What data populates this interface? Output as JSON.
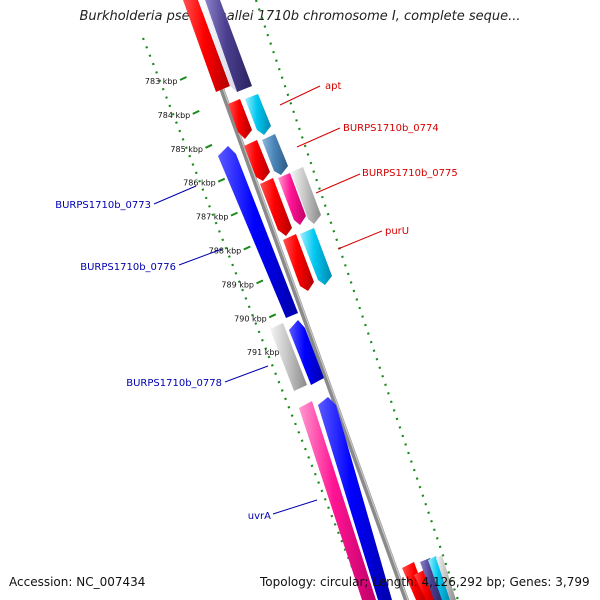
{
  "title": "Burkholderia pseudomallei 1710b chromosome I, complete seque...",
  "footer": {
    "accession": "Accession: NC_007434",
    "topology": "Topology: circular; Length: 4,126,292 bp; Genes: 3,799"
  },
  "ruler": [
    {
      "label": "783 kbp",
      "kbp": 783
    },
    {
      "label": "784 kbp",
      "kbp": 784
    },
    {
      "label": "785 kbp",
      "kbp": 785
    },
    {
      "label": "786 kbp",
      "kbp": 786
    },
    {
      "label": "787 kbp",
      "kbp": 787
    },
    {
      "label": "788 kbp",
      "kbp": 788
    },
    {
      "label": "789 kbp",
      "kbp": 789
    },
    {
      "label": "790 kbp",
      "kbp": 790
    },
    {
      "label": "791 kbp",
      "kbp": 791
    }
  ],
  "colors": {
    "red": "#ff0000",
    "cyan": "#00c8f0",
    "steel": "#4a86b8",
    "navy": "#4b3f8f",
    "blue": "#0000ff",
    "magenta": "#ff1493",
    "gray": "#c8c8c8",
    "label_red": "#d40000",
    "label_blue": "#0000b0",
    "backbone": "#888888",
    "ruler": "#1a8a1a"
  },
  "genes": [
    {
      "name": "apt",
      "strand": "forward"
    },
    {
      "name": "BURPS1710b_0774",
      "strand": "forward"
    },
    {
      "name": "BURPS1710b_0775",
      "strand": "forward"
    },
    {
      "name": "purU",
      "strand": "forward"
    },
    {
      "name": "BURPS1710b_0773",
      "strand": "reverse"
    },
    {
      "name": "BURPS1710b_0776",
      "strand": "reverse"
    },
    {
      "name": "BURPS1710b_0778",
      "strand": "reverse"
    },
    {
      "name": "uvrA",
      "strand": "reverse"
    }
  ]
}
